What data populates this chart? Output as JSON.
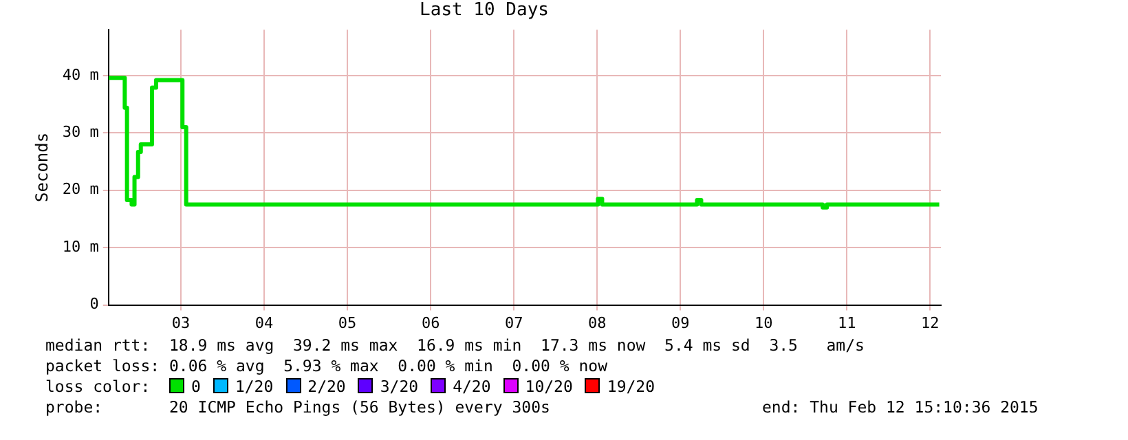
{
  "chart_data": {
    "type": "step",
    "title": "Last 10 Days",
    "ylabel": "Seconds",
    "xlim": [
      2.63,
      12.63
    ],
    "xticks": [
      {
        "value": 3.5,
        "label": "03"
      },
      {
        "value": 4.5,
        "label": "04"
      },
      {
        "value": 5.5,
        "label": "05"
      },
      {
        "value": 6.5,
        "label": "06"
      },
      {
        "value": 7.5,
        "label": "07"
      },
      {
        "value": 8.5,
        "label": "08"
      },
      {
        "value": 9.5,
        "label": "09"
      },
      {
        "value": 10.5,
        "label": "10"
      },
      {
        "value": 11.5,
        "label": "11"
      },
      {
        "value": 12.5,
        "label": "12"
      }
    ],
    "ylim": [
      0,
      48
    ],
    "yticks": [
      0,
      {
        "value": 10,
        "label": "10 m"
      },
      {
        "value": 20,
        "label": "20 m"
      },
      {
        "value": 30,
        "label": "30 m"
      },
      {
        "value": 40,
        "label": "40 m"
      }
    ],
    "grid": true,
    "legend": "bottom",
    "legend_title": "loss color:",
    "series": [
      {
        "name": "0",
        "color": "#00e000",
        "x": [
          2.63,
          2.825,
          2.852,
          2.908,
          2.942,
          2.985,
          3.018,
          3.152,
          3.202,
          3.518,
          3.563,
          8.51,
          8.56,
          9.7,
          9.75,
          11.21,
          11.26,
          12.61
        ],
        "values": [
          39.6,
          34.4,
          18.3,
          17.5,
          22.3,
          26.7,
          28,
          37.9,
          39.2,
          31,
          17.5,
          18.5,
          17.5,
          18.3,
          17.5,
          17,
          17.5,
          17.5
        ]
      },
      {
        "name": "1/20",
        "color": "#00b8ff"
      },
      {
        "name": "2/20",
        "color": "#0059ff"
      },
      {
        "name": "3/20",
        "color": "#5e00ff"
      },
      {
        "name": "4/20",
        "color": "#7e00ff"
      },
      {
        "name": "10/20",
        "color": "#dd00ff"
      },
      {
        "name": "19/20",
        "color": "#ff0000"
      }
    ],
    "annotations": [
      "median rtt:  18.9 ms avg  39.2 ms max  16.9 ms min  17.3 ms now  5.4 ms sd  3.5   am/s",
      "packet loss: 0.06 % avg  5.93 % max  0.00 % min  0.00 % now",
      "probe:       20 ICMP Echo Pings (56 Bytes) every 300s",
      "end: Thu Feb 12 15:10:36 2015"
    ]
  }
}
